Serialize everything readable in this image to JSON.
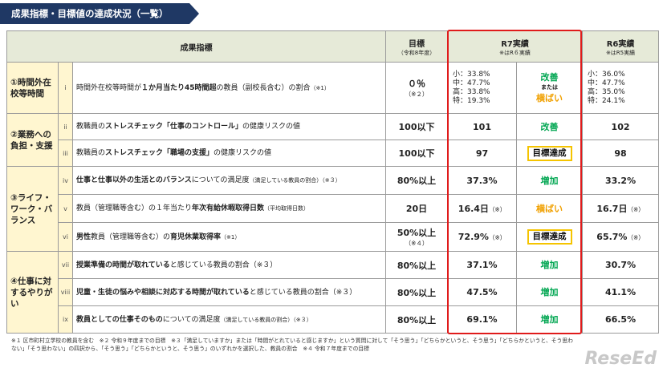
{
  "header": {
    "title": "成果指標・目標値の達成状況（一覧）"
  },
  "table": {
    "columns": {
      "indicator": {
        "label": "成果指標"
      },
      "target": {
        "label": "目標",
        "sub": "（令和8年度）"
      },
      "r7": {
        "label": "R7実績",
        "sub": "※はR６実績"
      },
      "r6": {
        "label": "R6実績",
        "sub": "※はR5実績"
      }
    },
    "groups": [
      {
        "label": "①時間外在校等時間",
        "rows": [
          {
            "numeral": "i",
            "indicator": [
              {
                "text": "時間外在校等時間が"
              },
              {
                "text": "１か月当たり45時間超",
                "bold": true
              },
              {
                "text": "の教員（副校長含む）の割合"
              },
              {
                "text": "（※1）",
                "small": true
              }
            ],
            "target": {
              "value": "０％",
              "note": "（※２）"
            },
            "r7": {
              "lines": [
                "小：33.8%",
                "中：47.7%",
                "高：33.8%",
                "特：19.3%"
              ]
            },
            "status": [
              {
                "text": "改善",
                "color": "#00a651"
              },
              {
                "text": "または",
                "small": true
              },
              {
                "text": "横ばい",
                "color": "#f0a000"
              }
            ],
            "r6": {
              "lines": [
                "小：36.0%",
                "中：47.7%",
                "高：35.0%",
                "特：24.1%"
              ]
            }
          }
        ]
      },
      {
        "label": "②業務への負担・支援",
        "rows": [
          {
            "numeral": "ii",
            "indicator": [
              {
                "text": "教職員の"
              },
              {
                "text": "ストレスチェック「仕事のコントロール」",
                "bold": true
              },
              {
                "text": "の健康リスクの値"
              }
            ],
            "target": {
              "value": "100以下"
            },
            "r7": {
              "value": "101"
            },
            "status": [
              {
                "text": "改善",
                "color": "#00a651"
              }
            ],
            "r6": {
              "value": "102"
            }
          },
          {
            "numeral": "iii",
            "indicator": [
              {
                "text": "教職員の"
              },
              {
                "text": "ストレスチェック「職場の支援」",
                "bold": true
              },
              {
                "text": "の健康リスクの値"
              }
            ],
            "target": {
              "value": "100以下"
            },
            "r7": {
              "value": "97"
            },
            "status": [
              {
                "text": "目標達成",
                "box": true
              }
            ],
            "r6": {
              "value": "98"
            }
          }
        ]
      },
      {
        "label": "③ライフ・ワーク・バランス",
        "rows": [
          {
            "numeral": "iv",
            "indicator": [
              {
                "text": "仕事と仕事以外の生活とのバランス",
                "bold": true
              },
              {
                "text": "についての満足度"
              },
              {
                "text": "（満足している教員の割合）（※３）",
                "small": true
              }
            ],
            "target": {
              "value": "80%以上"
            },
            "r7": {
              "value": "37.3%"
            },
            "status": [
              {
                "text": "増加",
                "color": "#00a651"
              }
            ],
            "r6": {
              "value": "33.2%"
            }
          },
          {
            "numeral": "v",
            "indicator": [
              {
                "text": "教員（管理職等含む）の１年当たり"
              },
              {
                "text": "年次有給休暇取得日数",
                "bold": true
              },
              {
                "text": "（平均取得日数）",
                "small": true
              }
            ],
            "target": {
              "value": "20日"
            },
            "r7": {
              "value": "16.4日",
              "note": "（※）"
            },
            "status": [
              {
                "text": "横ばい",
                "color": "#f0a000"
              }
            ],
            "r6": {
              "value": "16.7日",
              "note": "（※）"
            }
          },
          {
            "numeral": "vi",
            "indicator": [
              {
                "text": "男性",
                "bold": true
              },
              {
                "text": "教員（管理職等含む）の"
              },
              {
                "text": "育児休業取得率",
                "bold": true
              },
              {
                "text": "（※1）",
                "small": true
              }
            ],
            "target": {
              "value": "50%以上",
              "note": "（※４）"
            },
            "r7": {
              "value": "72.9%",
              "note": "（※）"
            },
            "status": [
              {
                "text": "目標達成",
                "box": true
              }
            ],
            "r6": {
              "value": "65.7%",
              "note": "（※）"
            }
          }
        ]
      },
      {
        "label": "④仕事に対するやりがい",
        "rows": [
          {
            "numeral": "vii",
            "indicator": [
              {
                "text": "授業準備の時間が取れている",
                "bold": true
              },
              {
                "text": "と感じている教員の割合（※３）"
              }
            ],
            "target": {
              "value": "80%以上"
            },
            "r7": {
              "value": "37.1%"
            },
            "status": [
              {
                "text": "増加",
                "color": "#00a651"
              }
            ],
            "r6": {
              "value": "30.7%"
            }
          },
          {
            "numeral": "viii",
            "indicator": [
              {
                "text": "児童・生徒の悩みや相談に対応する時間が取れている",
                "bold": true
              },
              {
                "text": "と感じている教員の割合（※３）"
              }
            ],
            "target": {
              "value": "80%以上"
            },
            "r7": {
              "value": "47.5%"
            },
            "status": [
              {
                "text": "増加",
                "color": "#00a651"
              }
            ],
            "r6": {
              "value": "41.1%"
            }
          },
          {
            "numeral": "ix",
            "indicator": [
              {
                "text": "教員としての仕事そのもの",
                "bold": true
              },
              {
                "text": "についての満足度"
              },
              {
                "text": "（満足している教員の割合）（※３）",
                "small": true
              }
            ],
            "target": {
              "value": "80%以上"
            },
            "r7": {
              "value": "69.1%"
            },
            "status": [
              {
                "text": "増加",
                "color": "#00a651"
              }
            ],
            "r6": {
              "value": "66.5%"
            }
          }
        ]
      }
    ]
  },
  "footnote": "※１ 区市町村立学校の教員を含む　※２ 令和９年度までの目標　※３「満足していますか」または「時間がとれていると感じますか」という質問に対して「そう思う」「どちらかというと、そう思う」「どちらかというと、そう思わない」「そう思わない」の四択から、「そう思う」「どちらかというと、そう思う」のいずれかを選択した、教員の割合　※４ 令和７年度までの目標",
  "logo": "ReseEd"
}
